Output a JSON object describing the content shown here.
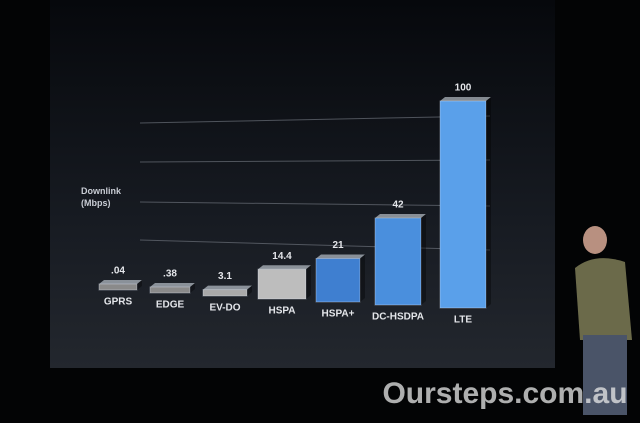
{
  "chart_data": {
    "type": "bar",
    "y_label": "Downlink\n(Mbps)",
    "categories": [
      "GPRS",
      "EDGE",
      "EV-DO",
      "HSPA",
      "HSPA+",
      "DC-HSDPA",
      "LTE"
    ],
    "values": [
      0.04,
      0.38,
      3.1,
      14.4,
      21,
      42,
      100
    ],
    "value_labels": [
      ".04",
      ".38",
      "3.1",
      "14.4",
      "21",
      "42",
      "100"
    ],
    "series_colors": [
      "#8a8a8a",
      "#8a8a8a",
      "#a9a9a9",
      "#bdbdbd",
      "#3f7fd0",
      "#4a8fdd",
      "#5aa0ea"
    ],
    "ylim": [
      0,
      100
    ]
  },
  "watermark": "Oursteps.com.au"
}
